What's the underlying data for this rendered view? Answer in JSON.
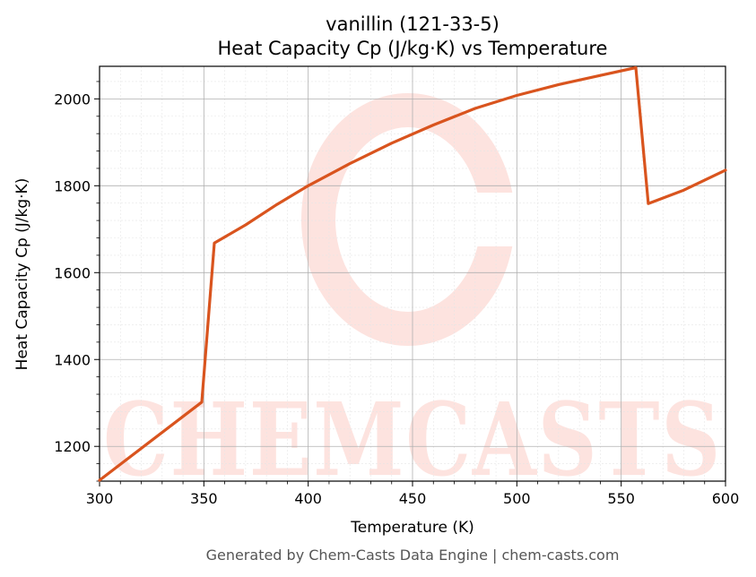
{
  "chart_data": {
    "type": "line",
    "title": "vanillin (121-33-5)",
    "subtitle": "Heat Capacity Cp (J/kg·K) vs Temperature",
    "xlabel": "Temperature (K)",
    "ylabel": "Heat Capacity Cp (J/kg·K)",
    "xlim": [
      300,
      600
    ],
    "ylim": [
      1120,
      2075
    ],
    "x_ticks": [
      300,
      350,
      400,
      450,
      500,
      550,
      600
    ],
    "y_ticks": [
      1200,
      1400,
      1600,
      1800,
      2000
    ],
    "grid": true,
    "legend": "none",
    "series": [
      {
        "color": "#d9541e",
        "points": [
          [
            300,
            1122
          ],
          [
            349,
            1302
          ],
          [
            355,
            1668
          ],
          [
            370,
            1710
          ],
          [
            385,
            1757
          ],
          [
            400,
            1800
          ],
          [
            420,
            1851
          ],
          [
            440,
            1898
          ],
          [
            460,
            1940
          ],
          [
            480,
            1978
          ],
          [
            500,
            2008
          ],
          [
            520,
            2033
          ],
          [
            540,
            2054
          ],
          [
            557,
            2072
          ],
          [
            563,
            1759
          ],
          [
            580,
            1790
          ],
          [
            600,
            1836
          ]
        ]
      }
    ]
  },
  "watermark": {
    "text": "CHEMCASTS",
    "color": "#fde3df"
  },
  "footer": "Generated by Chem-Casts Data Engine | chem-casts.com"
}
